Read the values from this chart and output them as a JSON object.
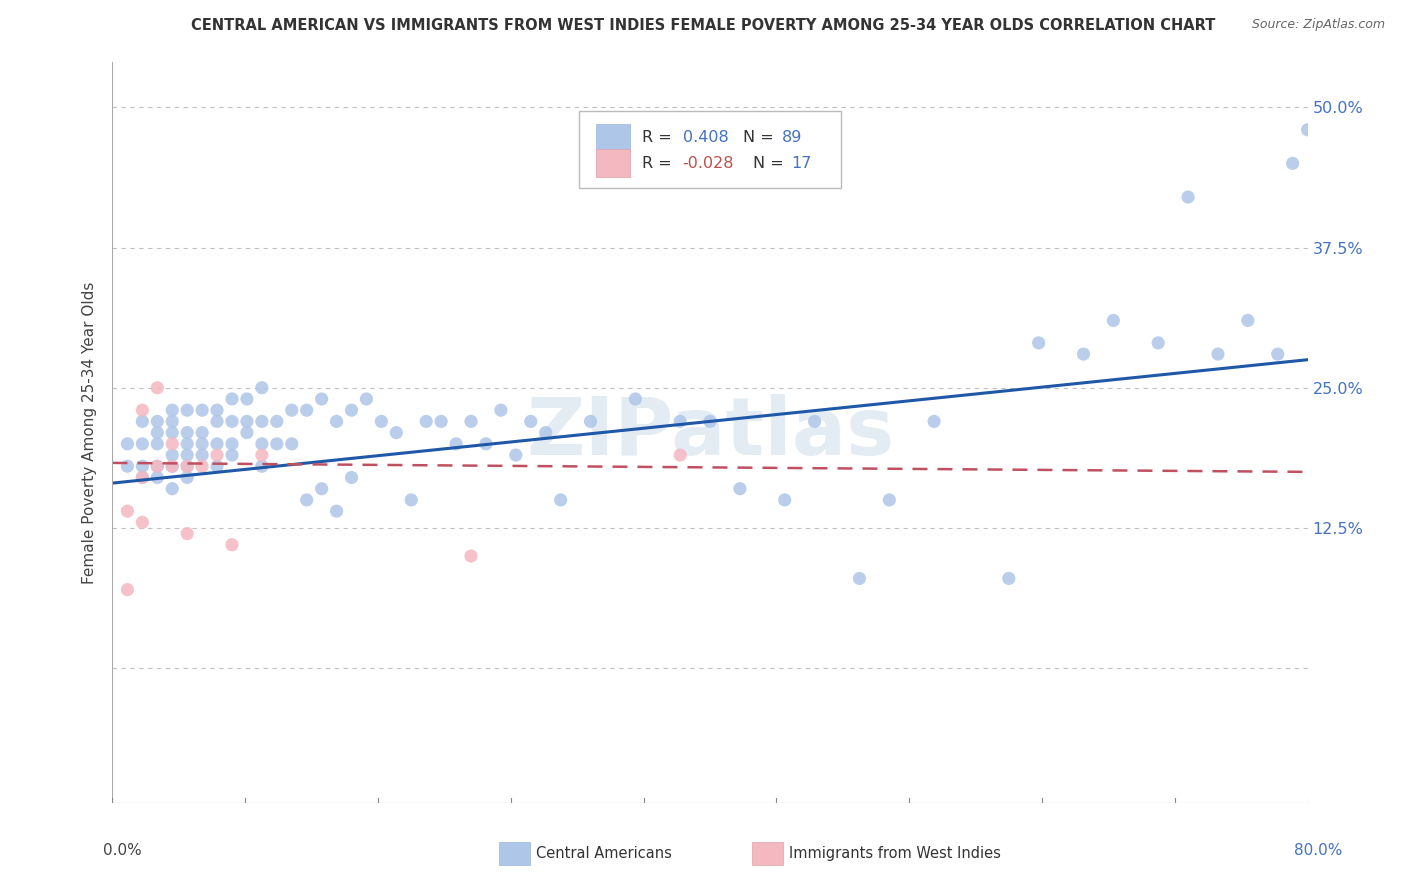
{
  "title": "CENTRAL AMERICAN VS IMMIGRANTS FROM WEST INDIES FEMALE POVERTY AMONG 25-34 YEAR OLDS CORRELATION CHART",
  "source": "Source: ZipAtlas.com",
  "ylabel": "Female Poverty Among 25-34 Year Olds",
  "yticks": [
    0.0,
    0.125,
    0.25,
    0.375,
    0.5
  ],
  "ytick_labels": [
    "",
    "12.5%",
    "25.0%",
    "37.5%",
    "50.0%"
  ],
  "xlim": [
    0.0,
    0.8
  ],
  "ylim": [
    -0.12,
    0.54
  ],
  "blue_R": 0.408,
  "blue_N": 89,
  "pink_R": -0.028,
  "pink_N": 17,
  "blue_color": "#aec6e8",
  "blue_line_color": "#2058a8",
  "pink_color": "#f4b8c1",
  "pink_line_color": "#c05060",
  "watermark": "ZIPatlas",
  "blue_scatter_x": [
    0.01,
    0.01,
    0.02,
    0.02,
    0.02,
    0.02,
    0.03,
    0.03,
    0.03,
    0.03,
    0.03,
    0.04,
    0.04,
    0.04,
    0.04,
    0.04,
    0.04,
    0.05,
    0.05,
    0.05,
    0.05,
    0.05,
    0.05,
    0.06,
    0.06,
    0.06,
    0.06,
    0.07,
    0.07,
    0.07,
    0.07,
    0.08,
    0.08,
    0.08,
    0.08,
    0.09,
    0.09,
    0.09,
    0.1,
    0.1,
    0.1,
    0.1,
    0.11,
    0.11,
    0.12,
    0.12,
    0.13,
    0.13,
    0.14,
    0.14,
    0.15,
    0.15,
    0.16,
    0.16,
    0.17,
    0.18,
    0.19,
    0.2,
    0.21,
    0.22,
    0.23,
    0.24,
    0.25,
    0.26,
    0.27,
    0.28,
    0.29,
    0.3,
    0.32,
    0.35,
    0.38,
    0.4,
    0.42,
    0.45,
    0.47,
    0.5,
    0.52,
    0.55,
    0.6,
    0.62,
    0.65,
    0.67,
    0.7,
    0.72,
    0.74,
    0.76,
    0.78,
    0.79,
    0.8
  ],
  "blue_scatter_y": [
    0.18,
    0.2,
    0.17,
    0.18,
    0.2,
    0.22,
    0.17,
    0.18,
    0.2,
    0.21,
    0.22,
    0.16,
    0.18,
    0.19,
    0.21,
    0.22,
    0.23,
    0.17,
    0.18,
    0.19,
    0.2,
    0.21,
    0.23,
    0.19,
    0.2,
    0.21,
    0.23,
    0.18,
    0.2,
    0.22,
    0.23,
    0.19,
    0.2,
    0.22,
    0.24,
    0.21,
    0.22,
    0.24,
    0.18,
    0.2,
    0.22,
    0.25,
    0.2,
    0.22,
    0.2,
    0.23,
    0.15,
    0.23,
    0.16,
    0.24,
    0.14,
    0.22,
    0.17,
    0.23,
    0.24,
    0.22,
    0.21,
    0.15,
    0.22,
    0.22,
    0.2,
    0.22,
    0.2,
    0.23,
    0.19,
    0.22,
    0.21,
    0.15,
    0.22,
    0.24,
    0.22,
    0.22,
    0.16,
    0.15,
    0.22,
    0.08,
    0.15,
    0.22,
    0.08,
    0.29,
    0.28,
    0.31,
    0.29,
    0.42,
    0.28,
    0.31,
    0.28,
    0.45,
    0.48
  ],
  "pink_scatter_x": [
    0.01,
    0.01,
    0.02,
    0.02,
    0.02,
    0.03,
    0.03,
    0.04,
    0.04,
    0.05,
    0.05,
    0.06,
    0.07,
    0.08,
    0.1,
    0.24,
    0.38
  ],
  "pink_scatter_y": [
    0.07,
    0.14,
    0.13,
    0.17,
    0.23,
    0.18,
    0.25,
    0.18,
    0.2,
    0.18,
    0.12,
    0.18,
    0.19,
    0.11,
    0.19,
    0.1,
    0.19
  ],
  "blue_line_x0": 0.0,
  "blue_line_y0": 0.165,
  "blue_line_x1": 0.8,
  "blue_line_y1": 0.275,
  "pink_line_x0": 0.0,
  "pink_line_y0": 0.183,
  "pink_line_x1": 0.8,
  "pink_line_y1": 0.175
}
